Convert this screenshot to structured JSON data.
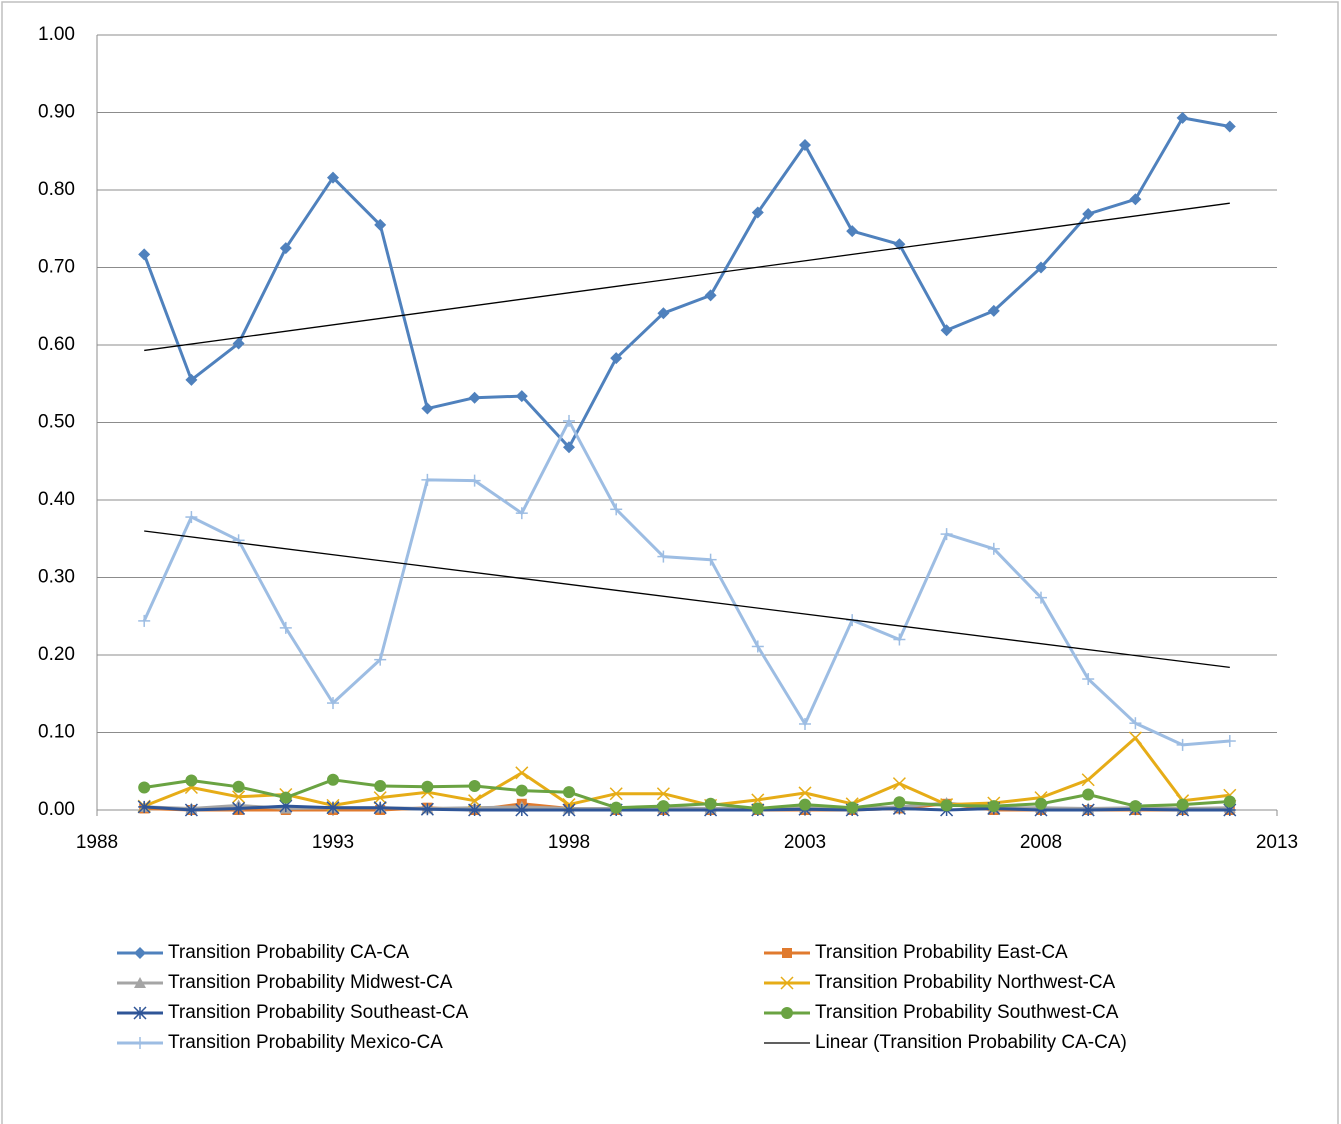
{
  "chart_data": {
    "type": "line",
    "xlim": [
      1988,
      2013
    ],
    "xticks": [
      1988,
      1993,
      1998,
      2003,
      2008,
      2013
    ],
    "ylim": [
      0,
      1
    ],
    "yticks": [
      {
        "value": 0,
        "label": "0.00"
      },
      {
        "value": 0.1,
        "label": "0.10"
      },
      {
        "value": 0.2,
        "label": "0.20"
      },
      {
        "value": 0.3,
        "label": "0.30"
      },
      {
        "value": 0.4,
        "label": "0.40"
      },
      {
        "value": 0.5,
        "label": "0.50"
      },
      {
        "value": 0.6,
        "label": "0.60"
      },
      {
        "value": 0.7,
        "label": "0.70"
      },
      {
        "value": 0.8,
        "label": "0.80"
      },
      {
        "value": 0.9,
        "label": "0.90"
      },
      {
        "value": 1,
        "label": "1.00"
      }
    ],
    "grid": true,
    "legend": "bottom",
    "x": [
      1989,
      1990,
      1991,
      1992,
      1993,
      1994,
      1995,
      1996,
      1997,
      1998,
      1999,
      2000,
      2001,
      2002,
      2003,
      2004,
      2005,
      2006,
      2007,
      2008,
      2009,
      2010,
      2011,
      2012
    ],
    "series": [
      {
        "name": "Transition Probability CA-CA",
        "color": "#4f81bd",
        "marker": "diamond",
        "values": [
          0.717,
          0.555,
          0.602,
          0.725,
          0.816,
          0.755,
          0.518,
          0.532,
          0.534,
          0.468,
          0.583,
          0.641,
          0.664,
          0.771,
          0.858,
          0.747,
          0.73,
          0.619,
          0.644,
          0.7,
          0.769,
          0.788,
          0.893,
          0.882
        ]
      },
      {
        "name": "Transition Probability East-CA",
        "color": "#e07a2e",
        "marker": "square",
        "values": [
          0.002,
          0,
          0,
          0,
          0,
          0,
          0.003,
          0,
          0.008,
          0.002,
          0,
          0,
          0,
          0,
          0,
          0,
          0.002,
          0.008,
          0,
          0,
          0,
          0,
          0,
          0
        ]
      },
      {
        "name": "Transition Probability Midwest-CA",
        "color": "#a5a5a5",
        "marker": "triangle",
        "values": [
          0.004,
          0.002,
          0.006,
          0.002,
          0.003,
          0.003,
          0.002,
          0.003,
          0.004,
          0.002,
          0.002,
          0.003,
          0.002,
          0.002,
          0.003,
          0.002,
          0.004,
          0.009,
          0.003,
          0.003,
          0.002,
          0.003,
          0.002,
          0.003
        ]
      },
      {
        "name": "Transition Probability Northwest-CA",
        "color": "#e6ac17",
        "marker": "x",
        "values": [
          0.005,
          0.029,
          0.017,
          0.02,
          0.006,
          0.016,
          0.023,
          0.012,
          0.048,
          0.007,
          0.021,
          0.021,
          0.006,
          0.013,
          0.022,
          0.008,
          0.034,
          0.007,
          0.009,
          0.016,
          0.039,
          0.093,
          0.012,
          0.019
        ]
      },
      {
        "name": "Transition Probability Southeast-CA",
        "color": "#2f5597",
        "marker": "star",
        "values": [
          0.004,
          0,
          0.002,
          0.005,
          0.003,
          0.003,
          0.001,
          0,
          0,
          0,
          0,
          0,
          0,
          0,
          0.001,
          0,
          0.002,
          0,
          0.002,
          0,
          0,
          0.001,
          0,
          0
        ]
      },
      {
        "name": "Transition Probability Southwest-CA",
        "color": "#6aa342",
        "marker": "circle",
        "values": [
          0.029,
          0.038,
          0.03,
          0.016,
          0.039,
          0.031,
          0.03,
          0.031,
          0.025,
          0.023,
          0.003,
          0.005,
          0.008,
          0.002,
          0.007,
          0.003,
          0.01,
          0.006,
          0.005,
          0.008,
          0.02,
          0.005,
          0.007,
          0.011
        ]
      },
      {
        "name": "Transition Probability Mexico-CA",
        "color": "#9dbde3",
        "marker": "plus",
        "values": [
          0.244,
          0.378,
          0.348,
          0.235,
          0.138,
          0.194,
          0.426,
          0.425,
          0.383,
          0.502,
          0.388,
          0.327,
          0.323,
          0.211,
          0.111,
          0.245,
          0.22,
          0.356,
          0.337,
          0.274,
          0.169,
          0.112,
          0.084,
          0.089
        ]
      }
    ],
    "trendlines": [
      {
        "name": "Linear (Transition Probability CA-CA)",
        "color": "#000000",
        "x": [
          1989,
          2012
        ],
        "values": [
          0.593,
          0.783
        ]
      },
      {
        "color": "#000000",
        "x": [
          1989,
          2012
        ],
        "values": [
          0.36,
          0.184
        ]
      }
    ]
  }
}
